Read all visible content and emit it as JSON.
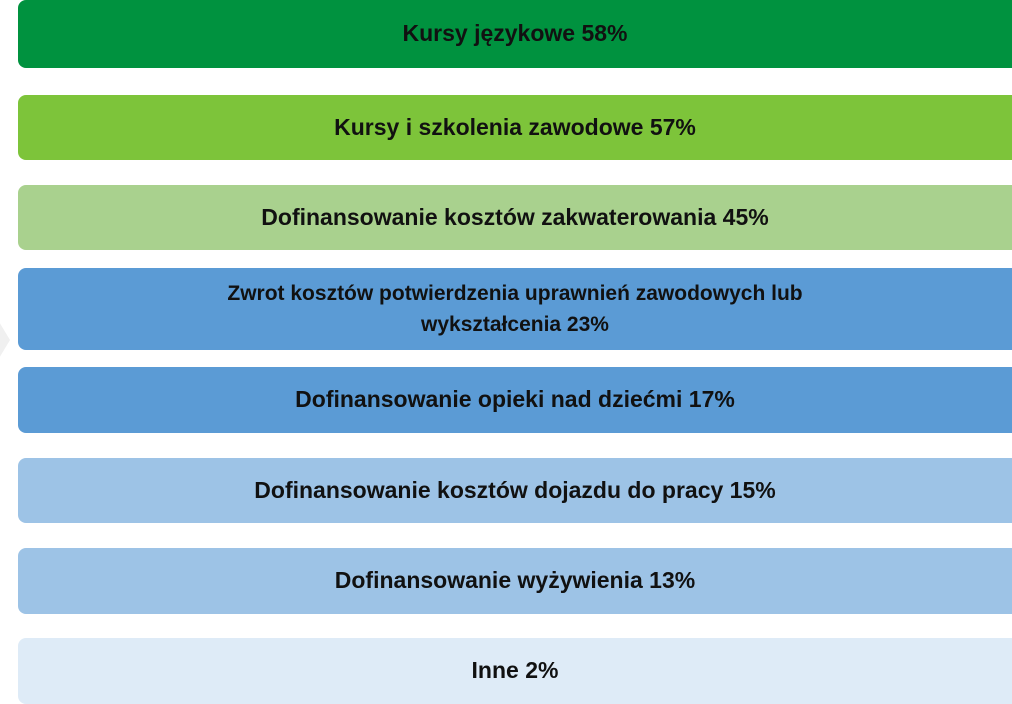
{
  "items": [
    {
      "label": "Kursy językowe 58%"
    },
    {
      "label": "Kursy i szkolenia zawodowe 57%"
    },
    {
      "label": "Dofinansowanie kosztów zakwaterowania 45%"
    },
    {
      "label": "Zwrot kosztów potwierdzenia uprawnień zawodowych lub wykształcenia 23%"
    },
    {
      "label": "Dofinansowanie opieki nad dziećmi 17%"
    },
    {
      "label": "Dofinansowanie kosztów dojazdu do pracy 15%"
    },
    {
      "label": "Dofinansowanie wyżywienia 13%"
    },
    {
      "label": "Inne 2%"
    }
  ]
}
